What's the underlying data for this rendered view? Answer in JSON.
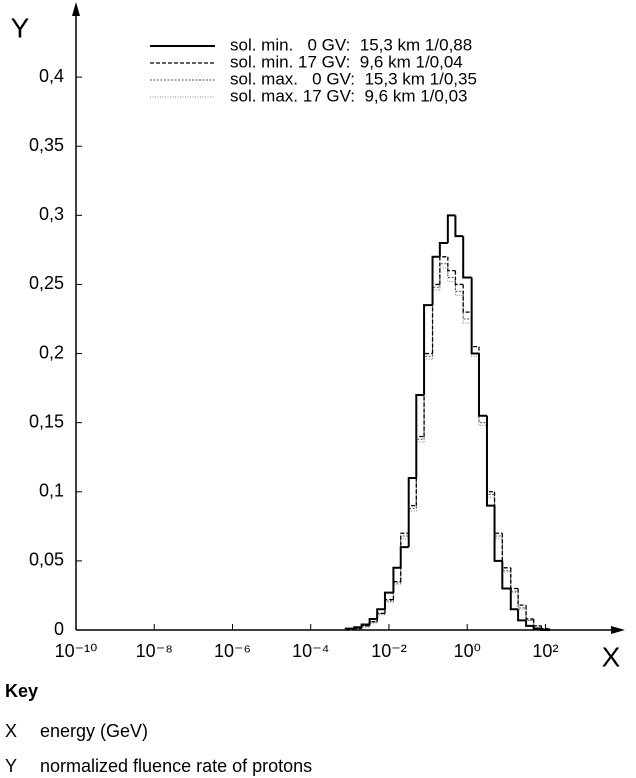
{
  "chart_data": {
    "type": "histogram",
    "x_label": "X",
    "y_label": "Y",
    "xscale": "log",
    "grid": false,
    "bins": [
      0.00079,
      0.0013,
      0.002,
      0.0032,
      0.005,
      0.0079,
      0.013,
      0.02,
      0.032,
      0.05,
      0.079,
      0.13,
      0.2,
      0.32,
      0.5,
      0.79,
      1.3,
      2,
      3.2,
      5,
      7.9,
      13,
      20,
      32,
      50,
      79,
      130
    ],
    "series": [
      {
        "name": "sol. min.   0 GV:  15,3 km 1/0,88",
        "color": "#000000",
        "style": "solid",
        "values": [
          0.001,
          0.002,
          0.004,
          0.008,
          0.015,
          0.027,
          0.045,
          0.06,
          0.11,
          0.17,
          0.235,
          0.27,
          0.28,
          0.3,
          0.285,
          0.255,
          0.2,
          0.155,
          0.09,
          0.05,
          0.03,
          0.015,
          0.007,
          0.003,
          0.001,
          0
        ]
      },
      {
        "name": "sol. min. 17 GV:  9,6 km 1/0,04",
        "color": "#000000",
        "style": "dashed",
        "values": [
          0,
          0.001,
          0.003,
          0.006,
          0.012,
          0.022,
          0.035,
          0.07,
          0.09,
          0.14,
          0.2,
          0.25,
          0.27,
          0.26,
          0.25,
          0.23,
          0.205,
          0.155,
          0.1,
          0.07,
          0.045,
          0.03,
          0.018,
          0.008,
          0.003,
          0.001
        ]
      },
      {
        "name": "sol. max.   0 GV:  15,3 km 1/0,35",
        "color": "#555555",
        "style": "fine-dashed",
        "values": [
          0,
          0.001,
          0.003,
          0.006,
          0.012,
          0.021,
          0.034,
          0.068,
          0.088,
          0.138,
          0.198,
          0.248,
          0.265,
          0.255,
          0.245,
          0.225,
          0.2,
          0.15,
          0.098,
          0.068,
          0.043,
          0.028,
          0.016,
          0.007,
          0.003,
          0.001
        ]
      },
      {
        "name": "sol. max. 17 GV:  9,6 km 1/0,03",
        "color": "#888888",
        "style": "dotted",
        "values": [
          0,
          0.001,
          0.002,
          0.005,
          0.011,
          0.02,
          0.033,
          0.066,
          0.086,
          0.136,
          0.196,
          0.246,
          0.262,
          0.252,
          0.242,
          0.222,
          0.198,
          0.148,
          0.096,
          0.066,
          0.042,
          0.027,
          0.015,
          0.007,
          0.002,
          0.001
        ]
      }
    ],
    "xlim": [
      1e-10,
      6000
    ],
    "xticks": [
      {
        "value": 1e-10,
        "label": "10⁻¹⁰"
      },
      {
        "value": 1e-08,
        "label": "10⁻⁸"
      },
      {
        "value": 1e-06,
        "label": "10⁻⁶"
      },
      {
        "value": 0.0001,
        "label": "10⁻⁴"
      },
      {
        "value": 0.01,
        "label": "10⁻²"
      },
      {
        "value": 1,
        "label": "10⁰"
      },
      {
        "value": 100,
        "label": "10²"
      }
    ],
    "ylim": [
      0,
      0.45
    ],
    "yticks": [
      0,
      {
        "value": 0.05,
        "label": "0,05"
      },
      {
        "value": 0.1,
        "label": "0,1"
      },
      {
        "value": 0.15,
        "label": "0,15"
      },
      {
        "value": 0.2,
        "label": "0,2"
      },
      {
        "value": 0.25,
        "label": "0,25"
      },
      {
        "value": 0.3,
        "label": "0,3"
      },
      {
        "value": 0.35,
        "label": "0,35"
      },
      {
        "value": 0.4,
        "label": "0,4"
      }
    ]
  },
  "key": {
    "title": "Key",
    "items": [
      {
        "symbol": "X",
        "text": "energy (GeV)"
      },
      {
        "symbol": "Y",
        "text": "normalized fluence rate of protons"
      }
    ]
  }
}
